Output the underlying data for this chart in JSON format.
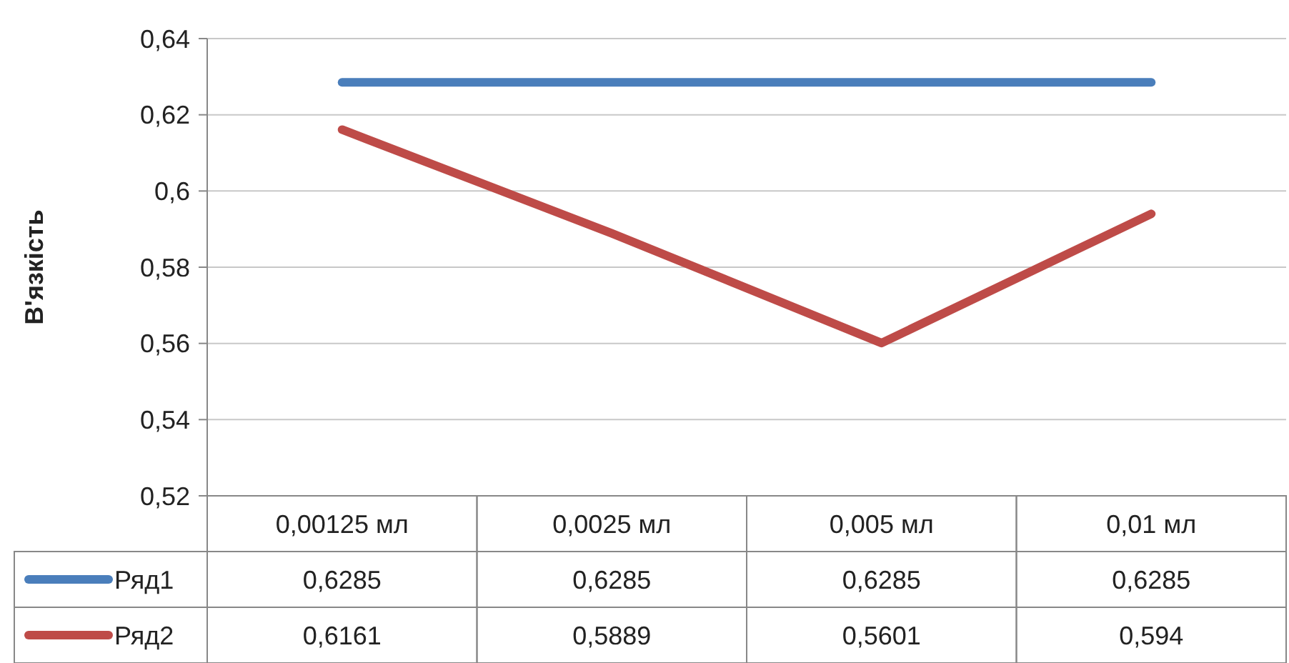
{
  "chart_data": {
    "type": "line",
    "ylabel": "В'язкість",
    "categories": [
      "0,00125 мл",
      "0,0025 мл",
      "0,005 мл",
      "0,01 мл"
    ],
    "series": [
      {
        "name": "Ряд1",
        "color": "#4a7ebb",
        "values": [
          0.6285,
          0.6285,
          0.6285,
          0.6285
        ],
        "value_labels": [
          "0,6285",
          "0,6285",
          "0,6285",
          "0,6285"
        ]
      },
      {
        "name": "Ряд2",
        "color": "#be4b48",
        "values": [
          0.6161,
          0.5889,
          0.5601,
          0.594
        ],
        "value_labels": [
          "0,6161",
          "0,5889",
          "0,5601",
          "0,594"
        ]
      }
    ],
    "ylim": [
      0.52,
      0.64
    ],
    "yticks": [
      {
        "value": 0.52,
        "label": "0,52"
      },
      {
        "value": 0.54,
        "label": "0,54"
      },
      {
        "value": 0.56,
        "label": "0,56"
      },
      {
        "value": 0.58,
        "label": "0,58"
      },
      {
        "value": 0.6,
        "label": "0,6"
      },
      {
        "value": 0.62,
        "label": "0,62"
      },
      {
        "value": 0.64,
        "label": "0,64"
      }
    ],
    "grid": "y",
    "legend": "bottom",
    "marker": "none",
    "line_style": "solid"
  }
}
